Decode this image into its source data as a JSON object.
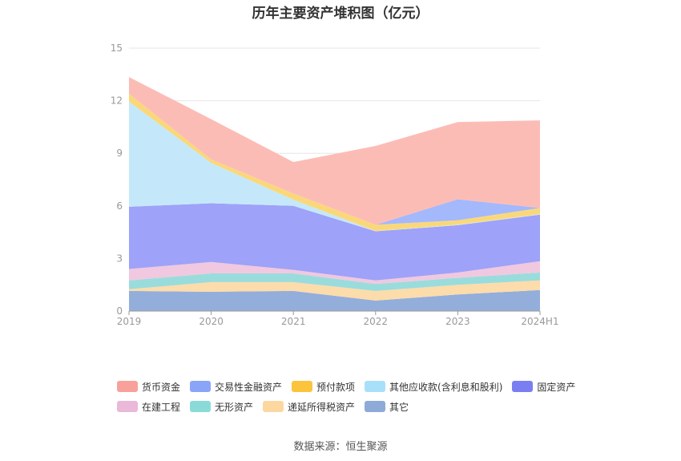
{
  "chart_data": {
    "type": "area",
    "title": "历年主要资产堆积图（亿元）",
    "categories": [
      "2019",
      "2020",
      "2021",
      "2022",
      "2023",
      "2024H1"
    ],
    "ylim": [
      0,
      15
    ],
    "yticks": [
      0,
      3,
      6,
      9,
      12,
      15
    ],
    "grid": true,
    "legend_position": "bottom",
    "stacked": true,
    "series": [
      {
        "name": "其它",
        "color": "#94aedb",
        "values": [
          1.15,
          1.1,
          1.15,
          0.6,
          0.95,
          1.2
        ]
      },
      {
        "name": "递延所得税资产",
        "color": "#fcdcaa",
        "values": [
          0.1,
          0.55,
          0.5,
          0.55,
          0.55,
          0.55
        ]
      },
      {
        "name": "无形资产",
        "color": "#9adcdc",
        "values": [
          0.5,
          0.5,
          0.5,
          0.4,
          0.4,
          0.45
        ]
      },
      {
        "name": "在建工程",
        "color": "#f0c8e0",
        "values": [
          0.65,
          0.65,
          0.2,
          0.2,
          0.3,
          0.65
        ]
      },
      {
        "name": "固定资产",
        "color": "#9ea2f8",
        "values": [
          3.55,
          3.35,
          3.65,
          2.8,
          2.7,
          2.65
        ]
      },
      {
        "name": "其他应收款(含利息和股利)",
        "color": "#c4e8fa",
        "values": [
          6.0,
          2.3,
          0.35,
          0.02,
          0.03,
          0.03
        ]
      },
      {
        "name": "预付款项",
        "color": "#fad87a",
        "values": [
          0.45,
          0.2,
          0.35,
          0.35,
          0.25,
          0.35
        ]
      },
      {
        "name": "交易性金融资产",
        "color": "#a4b8fc",
        "values": [
          0,
          0,
          0,
          0,
          1.2,
          0
        ]
      },
      {
        "name": "货币资金",
        "color": "#fcbcb6",
        "values": [
          0.95,
          2.3,
          1.8,
          4.5,
          4.4,
          5.0
        ]
      }
    ]
  },
  "legend": {
    "row1": [
      {
        "label": "货币资金",
        "color": "#f8a19a"
      },
      {
        "label": "交易性金融资产",
        "color": "#8aa5f8"
      },
      {
        "label": "预付款项",
        "color": "#fbc43c"
      },
      {
        "label": "其他应收款(含利息和股利)",
        "color": "#a8e0fa"
      },
      {
        "label": "固定资产",
        "color": "#7b7ef0"
      }
    ],
    "row2": [
      {
        "label": "在建工程",
        "color": "#eab8d8"
      },
      {
        "label": "无形资产",
        "color": "#8adbd8"
      },
      {
        "label": "递延所得税资产",
        "color": "#fcd8a0"
      },
      {
        "label": "其它",
        "color": "#8eaad8"
      }
    ]
  },
  "source": "数据来源：恒生聚源"
}
